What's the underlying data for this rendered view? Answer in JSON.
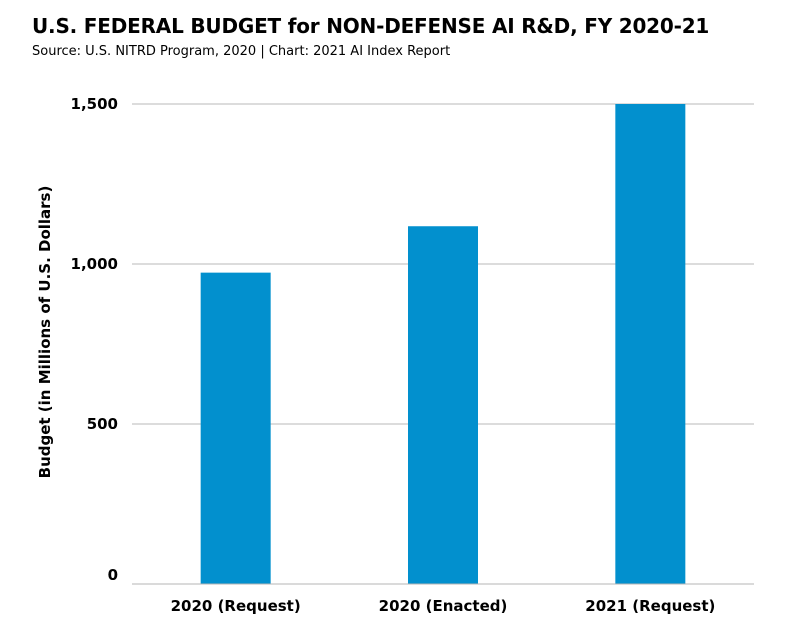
{
  "chart_data": {
    "type": "bar",
    "title": "U.S. FEDERAL BUDGET for NON-DEFENSE AI R&D, FY 2020-21",
    "subtitle": "Source: U.S. NITRD Program, 2020 | Chart: 2021 AI Index Report",
    "xlabel": "",
    "ylabel": "Budget (in Millions of U.S. Dollars)",
    "categories": [
      "2020 (Request)",
      "2020 (Enacted)",
      "2021 (Request)"
    ],
    "values": [
      973,
      1118,
      1500
    ],
    "ylim": [
      0,
      1500
    ],
    "yticks": [
      0,
      500,
      1000,
      1500
    ],
    "ytick_labels": [
      "0",
      "500",
      "1,000",
      "1,500"
    ],
    "grid": true,
    "legend": "none",
    "bar_color": "#0290ce",
    "grid_color": "#c8c8c8"
  }
}
